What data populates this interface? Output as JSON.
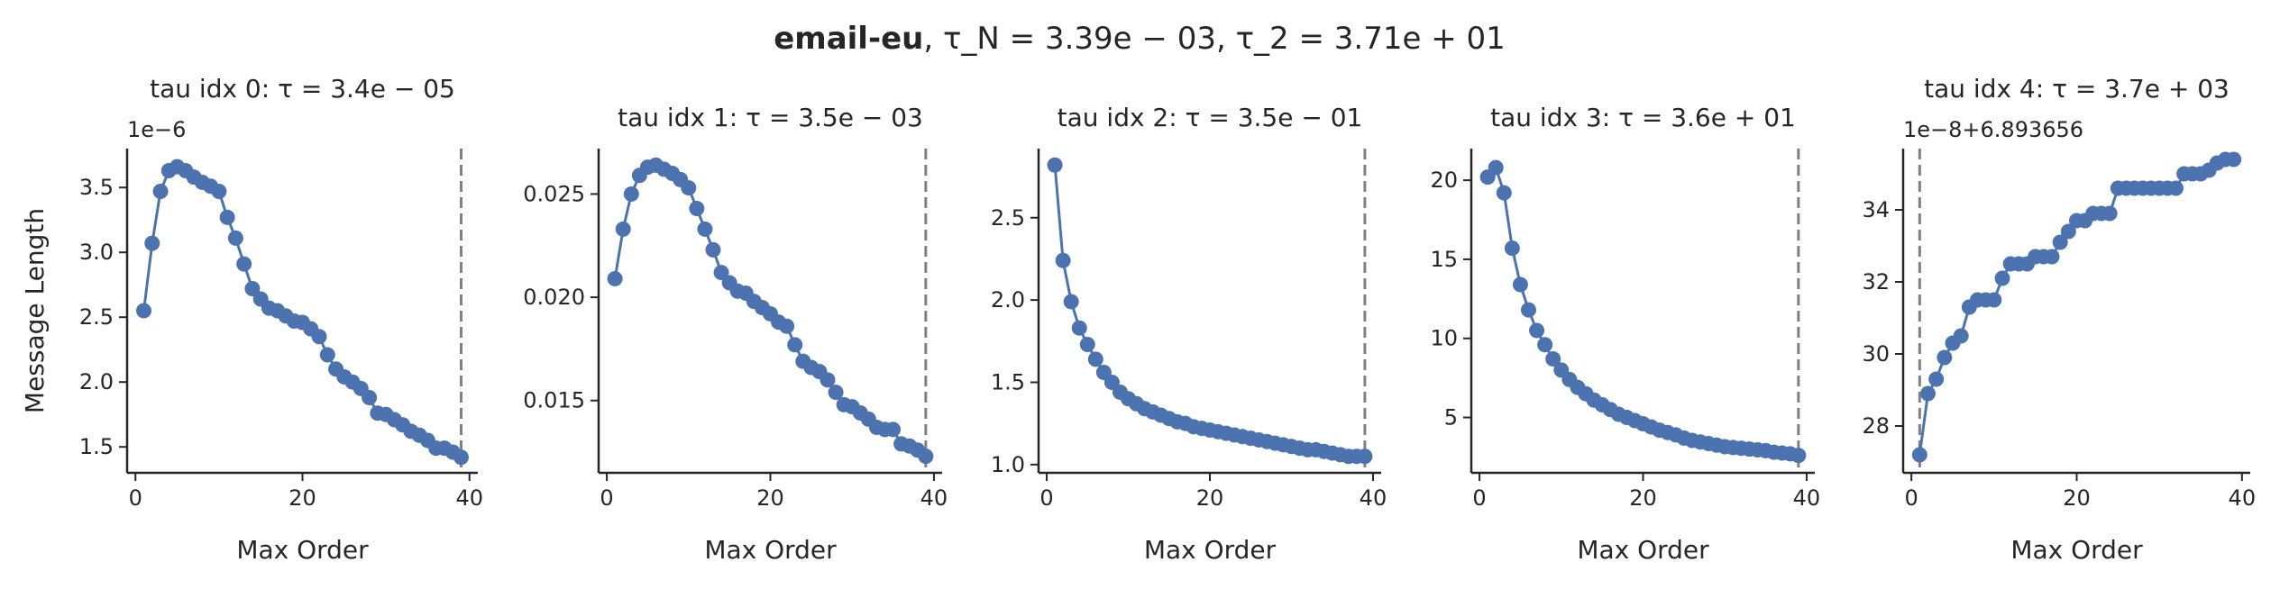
{
  "figure": {
    "suptitle_bold": "email-eu",
    "suptitle_rest": ", τ_N = 3.39e − 03, τ_2 = 3.71e + 01",
    "line_color": "#4c72b0",
    "vline_color": "#808080"
  },
  "chart_data": [
    {
      "type": "line",
      "title": "tau idx 0: τ = 3.4e − 05",
      "xlabel": "Max Order",
      "ylabel": "Message Length",
      "offset_text": "1e−6",
      "xlim": [
        -1,
        41
      ],
      "ylim": [
        1.3,
        3.8
      ],
      "xticks": [
        0,
        20,
        40
      ],
      "yticks": [
        1.5,
        2.0,
        2.5,
        3.0,
        3.5
      ],
      "ytick_labels": [
        "1.5",
        "2.0",
        "2.5",
        "3.0",
        "3.5"
      ],
      "vline_x": 39,
      "x": [
        1,
        2,
        3,
        4,
        5,
        6,
        7,
        8,
        9,
        10,
        11,
        12,
        13,
        14,
        15,
        16,
        17,
        18,
        19,
        20,
        21,
        22,
        23,
        24,
        25,
        26,
        27,
        28,
        29,
        30,
        31,
        32,
        33,
        34,
        35,
        36,
        37,
        38,
        39
      ],
      "y": [
        2.55,
        3.07,
        3.47,
        3.63,
        3.66,
        3.63,
        3.58,
        3.54,
        3.51,
        3.47,
        3.27,
        3.11,
        2.91,
        2.72,
        2.64,
        2.57,
        2.55,
        2.51,
        2.47,
        2.46,
        2.41,
        2.35,
        2.21,
        2.1,
        2.04,
        2.0,
        1.95,
        1.88,
        1.76,
        1.75,
        1.71,
        1.67,
        1.62,
        1.59,
        1.55,
        1.49,
        1.49,
        1.46,
        1.42
      ]
    },
    {
      "type": "line",
      "title": "tau idx 1: τ = 3.5e − 03",
      "xlabel": "Max Order",
      "ylabel": "",
      "offset_text": "",
      "xlim": [
        -1,
        41
      ],
      "ylim": [
        0.0115,
        0.0272
      ],
      "xticks": [
        0,
        20,
        40
      ],
      "yticks": [
        0.015,
        0.02,
        0.025
      ],
      "ytick_labels": [
        "0.015",
        "0.020",
        "0.025"
      ],
      "vline_x": 39,
      "x": [
        1,
        2,
        3,
        4,
        5,
        6,
        7,
        8,
        9,
        10,
        11,
        12,
        13,
        14,
        15,
        16,
        17,
        18,
        19,
        20,
        21,
        22,
        23,
        24,
        25,
        26,
        27,
        28,
        29,
        30,
        31,
        32,
        33,
        34,
        35,
        36,
        37,
        38,
        39
      ],
      "y": [
        0.0209,
        0.0233,
        0.025,
        0.0259,
        0.0263,
        0.0264,
        0.0262,
        0.026,
        0.0257,
        0.0253,
        0.0243,
        0.0233,
        0.0223,
        0.0212,
        0.0207,
        0.0203,
        0.0202,
        0.0198,
        0.0195,
        0.0192,
        0.0188,
        0.0186,
        0.0177,
        0.0169,
        0.0166,
        0.0164,
        0.016,
        0.0154,
        0.0148,
        0.0147,
        0.0144,
        0.0141,
        0.0137,
        0.0136,
        0.0136,
        0.0129,
        0.0128,
        0.0126,
        0.0123
      ]
    },
    {
      "type": "line",
      "title": "tau idx 2: τ = 3.5e − 01",
      "xlabel": "Max Order",
      "ylabel": "",
      "offset_text": "",
      "xlim": [
        -1,
        41
      ],
      "ylim": [
        0.95,
        2.92
      ],
      "xticks": [
        0,
        20,
        40
      ],
      "yticks": [
        1.0,
        1.5,
        2.0,
        2.5
      ],
      "ytick_labels": [
        "1.0",
        "1.5",
        "2.0",
        "2.5"
      ],
      "vline_x": 39,
      "x": [
        1,
        2,
        3,
        4,
        5,
        6,
        7,
        8,
        9,
        10,
        11,
        12,
        13,
        14,
        15,
        16,
        17,
        18,
        19,
        20,
        21,
        22,
        23,
        24,
        25,
        26,
        27,
        28,
        29,
        30,
        31,
        32,
        33,
        34,
        35,
        36,
        37,
        38,
        39
      ],
      "y": [
        2.82,
        2.24,
        1.99,
        1.83,
        1.73,
        1.64,
        1.56,
        1.5,
        1.44,
        1.4,
        1.37,
        1.34,
        1.32,
        1.3,
        1.28,
        1.26,
        1.25,
        1.23,
        1.22,
        1.21,
        1.2,
        1.19,
        1.18,
        1.17,
        1.16,
        1.15,
        1.14,
        1.13,
        1.12,
        1.11,
        1.1,
        1.09,
        1.09,
        1.08,
        1.07,
        1.06,
        1.05,
        1.05,
        1.05
      ]
    },
    {
      "type": "line",
      "title": "tau idx 3: τ = 3.6e + 01",
      "xlabel": "Max Order",
      "ylabel": "",
      "offset_text": "",
      "xlim": [
        -1,
        41
      ],
      "ylim": [
        1.5,
        22
      ],
      "xticks": [
        0,
        20,
        40
      ],
      "yticks": [
        5,
        10,
        15,
        20
      ],
      "ytick_labels": [
        "5",
        "10",
        "15",
        "20"
      ],
      "vline_x": 39,
      "x": [
        1,
        2,
        3,
        4,
        5,
        6,
        7,
        8,
        9,
        10,
        11,
        12,
        13,
        14,
        15,
        16,
        17,
        18,
        19,
        20,
        21,
        22,
        23,
        24,
        25,
        26,
        27,
        28,
        29,
        30,
        31,
        32,
        33,
        34,
        35,
        36,
        37,
        38,
        39
      ],
      "y": [
        20.2,
        20.8,
        19.2,
        15.7,
        13.4,
        11.8,
        10.5,
        9.6,
        8.7,
        8.0,
        7.4,
        6.9,
        6.5,
        6.1,
        5.8,
        5.5,
        5.2,
        5.0,
        4.8,
        4.6,
        4.4,
        4.2,
        4.05,
        3.9,
        3.7,
        3.55,
        3.45,
        3.35,
        3.25,
        3.15,
        3.1,
        3.05,
        3.0,
        2.95,
        2.9,
        2.8,
        2.75,
        2.7,
        2.6
      ]
    },
    {
      "type": "line",
      "title": "tau idx 4: τ = 3.7e + 03",
      "xlabel": "Max Order",
      "ylabel": "",
      "offset_text": "1e−8+6.893656",
      "xlim": [
        -1,
        41
      ],
      "ylim": [
        26.7,
        35.7
      ],
      "xticks": [
        0,
        20,
        40
      ],
      "yticks": [
        28,
        30,
        32,
        34
      ],
      "ytick_labels": [
        "28",
        "30",
        "32",
        "34"
      ],
      "vline_x": 1,
      "x": [
        1,
        2,
        3,
        4,
        5,
        6,
        7,
        8,
        9,
        10,
        11,
        12,
        13,
        14,
        15,
        16,
        17,
        18,
        19,
        20,
        21,
        22,
        23,
        24,
        25,
        26,
        27,
        28,
        29,
        30,
        31,
        32,
        33,
        34,
        35,
        36,
        37,
        38,
        39
      ],
      "y": [
        27.2,
        28.9,
        29.3,
        29.9,
        30.3,
        30.5,
        31.3,
        31.5,
        31.5,
        31.5,
        32.1,
        32.5,
        32.5,
        32.5,
        32.7,
        32.7,
        32.7,
        33.1,
        33.4,
        33.7,
        33.7,
        33.9,
        33.9,
        33.9,
        34.6,
        34.6,
        34.6,
        34.6,
        34.6,
        34.6,
        34.6,
        34.6,
        35.0,
        35.0,
        35.0,
        35.1,
        35.3,
        35.4,
        35.4
      ]
    }
  ]
}
